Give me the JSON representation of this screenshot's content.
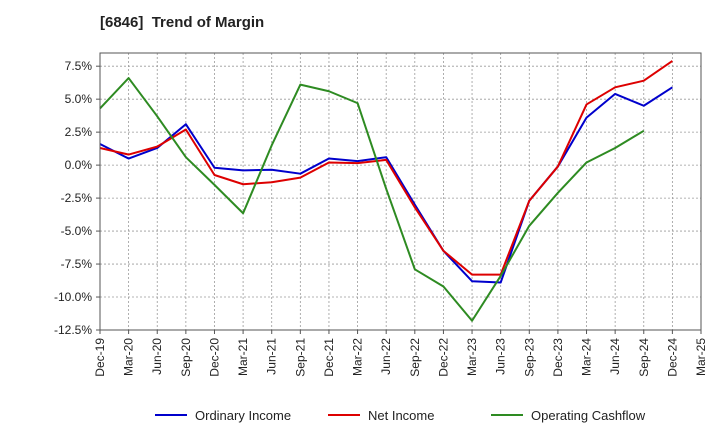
{
  "chart_data": {
    "type": "line",
    "title": "[6846]  Trend of Margin",
    "xlabel": "",
    "ylabel": "",
    "ylim": [
      -12.5,
      8.5
    ],
    "yticks": [
      7.5,
      5.0,
      2.5,
      0.0,
      -2.5,
      -5.0,
      -7.5,
      -10.0,
      -12.5
    ],
    "ytick_labels": [
      "7.5%",
      "5.0%",
      "2.5%",
      "0.0%",
      "-2.5%",
      "-5.0%",
      "-7.5%",
      "-10.0%",
      "-12.5%"
    ],
    "categories": [
      "Dec-19",
      "Mar-20",
      "Jun-20",
      "Sep-20",
      "Dec-20",
      "Mar-21",
      "Jun-21",
      "Sep-21",
      "Dec-21",
      "Mar-22",
      "Jun-22",
      "Sep-22",
      "Dec-22",
      "Mar-23",
      "Jun-23",
      "Sep-23",
      "Dec-23",
      "Mar-24",
      "Jun-24",
      "Sep-24",
      "Dec-24",
      "Mar-25"
    ],
    "grid": true,
    "legend_position": "bottom",
    "series": [
      {
        "name": "Ordinary Income",
        "color": "#0000cc",
        "values": [
          1.6,
          0.5,
          1.3,
          3.1,
          -0.2,
          -0.4,
          -0.35,
          -0.65,
          0.5,
          0.3,
          0.6,
          -3.0,
          -6.5,
          -8.8,
          -8.9,
          -2.7,
          -0.1,
          3.6,
          5.4,
          4.5,
          5.9,
          null
        ]
      },
      {
        "name": "Net Income",
        "color": "#dd0000",
        "values": [
          1.3,
          0.8,
          1.4,
          2.7,
          -0.75,
          -1.45,
          -1.3,
          -0.95,
          0.2,
          0.15,
          0.4,
          -3.2,
          -6.5,
          -8.3,
          -8.3,
          -2.7,
          -0.1,
          4.6,
          5.9,
          6.4,
          7.9,
          null
        ]
      },
      {
        "name": "Operating Cashflow",
        "color": "#2e8b22",
        "values": [
          4.3,
          6.6,
          3.7,
          0.6,
          -1.5,
          -3.65,
          1.5,
          6.1,
          5.6,
          4.7,
          -1.8,
          -7.9,
          -9.2,
          -11.8,
          -8.4,
          -4.6,
          -2.1,
          0.2,
          1.3,
          2.6,
          null,
          null
        ]
      }
    ]
  }
}
